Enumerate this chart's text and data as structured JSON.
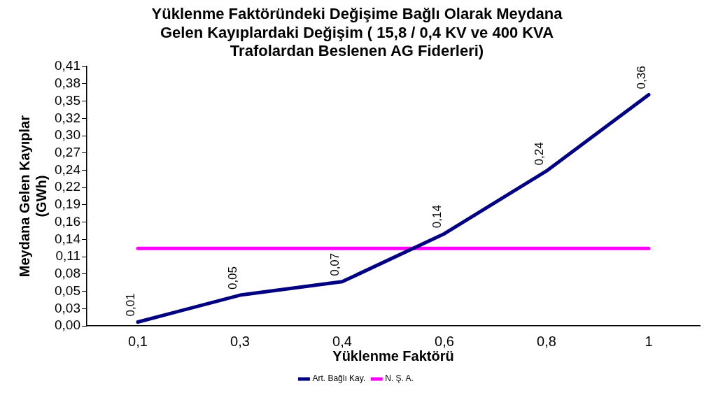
{
  "chart_data": {
    "type": "line",
    "title": [
      "Yüklenme Faktöründeki Değişime Bağlı Olarak Meydana",
      "Gelen Kayıplardaki Değişim ( 15,8 / 0,4 KV ve 400 KVA",
      "Trafolardan Beslenen AG Fiderleri)"
    ],
    "xlabel": "Yüklenme Faktörü",
    "ylabel": [
      "Meydana Gelen Kayıplar",
      "(GWh)"
    ],
    "categories": [
      "0,1",
      "0,3",
      "0,4",
      "0,6",
      "0,8",
      "1"
    ],
    "series": [
      {
        "name": "Art. Bağlı Kay.",
        "color": "#000080",
        "values": [
          0.006,
          0.048,
          0.069,
          0.144,
          0.242,
          0.361
        ],
        "value_labels": [
          "0,01",
          "0,05",
          "0,07",
          "0,14",
          "0,24",
          "0,36"
        ]
      },
      {
        "name": "N. Ş. A.",
        "color": "#ff00ff",
        "values": [
          0.121,
          0.121,
          0.121,
          0.121,
          0.121,
          0.121
        ]
      }
    ],
    "ylim": [
      0,
      0.405
    ],
    "yticks": [
      {
        "value": 0,
        "label": "0,00"
      },
      {
        "value": 0.027,
        "label": "0,03"
      },
      {
        "value": 0.054,
        "label": "0,05"
      },
      {
        "value": 0.081,
        "label": "0,08"
      },
      {
        "value": 0.108,
        "label": "0,11"
      },
      {
        "value": 0.135,
        "label": "0,14"
      },
      {
        "value": 0.162,
        "label": "0,16"
      },
      {
        "value": 0.189,
        "label": "0,19"
      },
      {
        "value": 0.216,
        "label": "0,22"
      },
      {
        "value": 0.243,
        "label": "0,24"
      },
      {
        "value": 0.27,
        "label": "0,27"
      },
      {
        "value": 0.297,
        "label": "0,30"
      },
      {
        "value": 0.324,
        "label": "0,32"
      },
      {
        "value": 0.351,
        "label": "0,35"
      },
      {
        "value": 0.378,
        "label": "0,38"
      },
      {
        "value": 0.405,
        "label": "0,41"
      }
    ],
    "grid": false,
    "legend": "bottom",
    "marker": "none",
    "line_style": "solid"
  }
}
